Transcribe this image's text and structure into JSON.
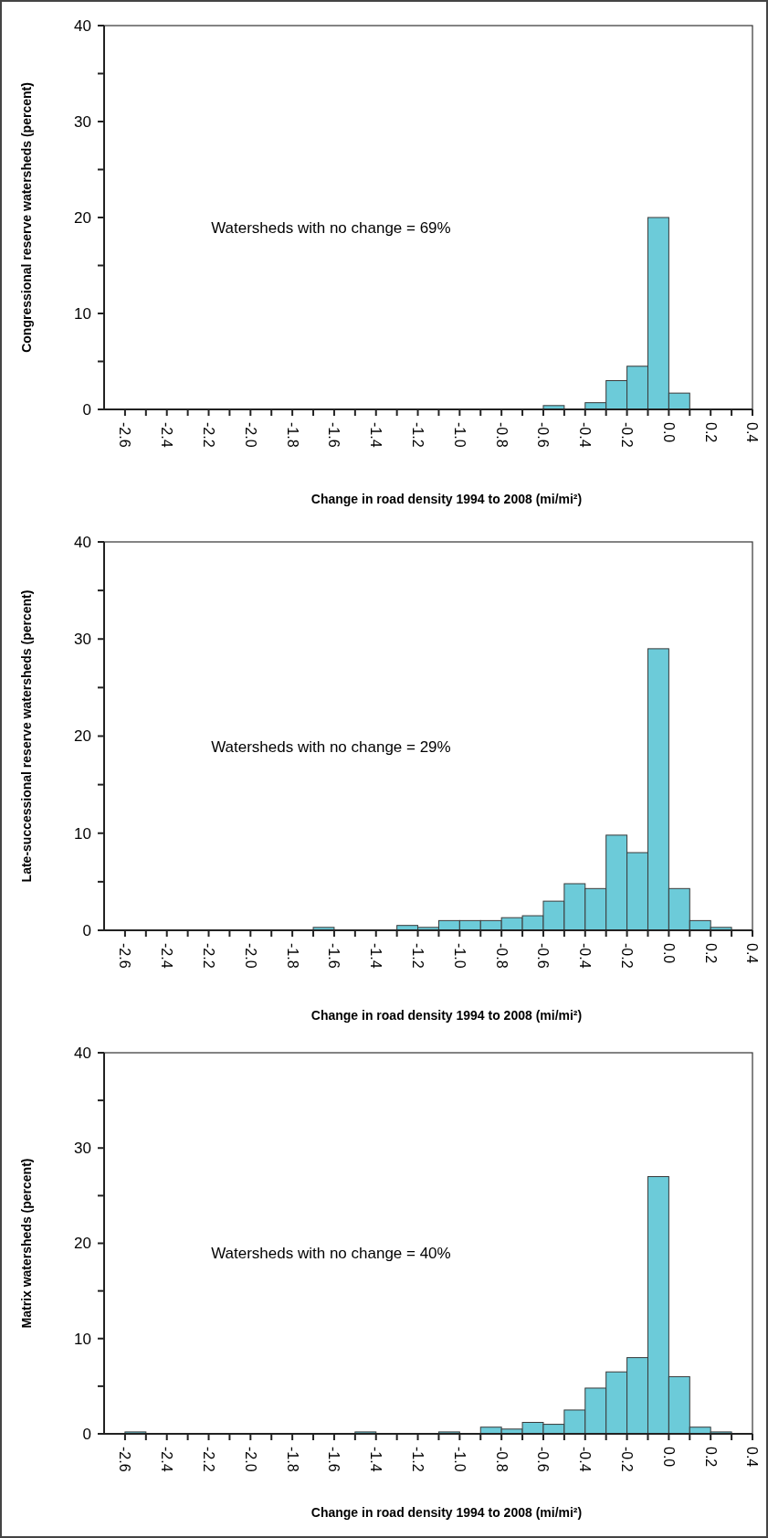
{
  "chart_data": [
    {
      "type": "histogram",
      "ylabel": "Congressional reserve watersheds (percent)",
      "xlabel": "Change in road density 1994 to 2008 (mi/mi²)",
      "annotations": [
        "Watersheds with no change = 69%"
      ],
      "color": "#6ccbd9",
      "bins": [
        -2.6,
        -2.5,
        -2.4,
        -2.3,
        -2.2,
        -2.1,
        -2.0,
        -1.9,
        -1.8,
        -1.7,
        -1.6,
        -1.5,
        -1.4,
        -1.3,
        -1.2,
        -1.1,
        -1.0,
        -0.9,
        -0.8,
        -0.7,
        -0.6,
        -0.5,
        -0.4,
        -0.3,
        -0.2,
        -0.1,
        0.0,
        0.1,
        0.2,
        0.3,
        0.4
      ],
      "values": [
        0,
        0,
        0,
        0,
        0,
        0,
        0,
        0,
        0,
        0,
        0,
        0,
        0,
        0,
        0,
        0,
        0,
        0,
        0,
        0,
        0.4,
        0,
        0.7,
        3.0,
        4.5,
        20.0,
        1.7,
        0,
        0,
        0
      ],
      "xlim": [
        -2.7,
        0.4
      ],
      "ylim": [
        0,
        40
      ],
      "xticks": [
        -2.6,
        {
          "value": -2.5,
          "label": null
        },
        -2.4,
        {
          "value": -2.3,
          "label": null
        },
        -2.2,
        {
          "value": -2.1,
          "label": null
        },
        {
          "value": -2.0,
          "label": "-2.0"
        },
        {
          "value": -1.9,
          "label": null
        },
        -1.8,
        {
          "value": -1.7,
          "label": null
        },
        -1.6,
        {
          "value": -1.5,
          "label": null
        },
        -1.4,
        {
          "value": -1.3,
          "label": null
        },
        -1.2,
        {
          "value": -1.1,
          "label": null
        },
        {
          "value": -1.0,
          "label": "-1.0"
        },
        {
          "value": -0.9,
          "label": null
        },
        -0.8,
        {
          "value": -0.7,
          "label": null
        },
        -0.6,
        {
          "value": -0.5,
          "label": null
        },
        -0.4,
        {
          "value": -0.3,
          "label": null
        },
        -0.2,
        {
          "value": -0.1,
          "label": null
        },
        {
          "value": 0,
          "label": "0.0"
        },
        {
          "value": 0.1,
          "label": null
        },
        0.2,
        {
          "value": 0.3,
          "label": null
        },
        0.4
      ],
      "yticks": [
        0,
        {
          "value": 5,
          "label": null
        },
        10,
        {
          "value": 15,
          "label": null
        },
        20,
        {
          "value": 25,
          "label": null
        },
        30,
        {
          "value": 35,
          "label": null
        },
        40
      ]
    },
    {
      "type": "histogram",
      "ylabel": "Late-successional reserve watersheds (percent)",
      "xlabel": "Change in road density 1994 to 2008 (mi/mi²)",
      "annotations": [
        "Watersheds with no change = 29%"
      ],
      "color": "#6ccbd9",
      "bins": [
        -2.6,
        -2.5,
        -2.4,
        -2.3,
        -2.2,
        -2.1,
        -2.0,
        -1.9,
        -1.8,
        -1.7,
        -1.6,
        -1.5,
        -1.4,
        -1.3,
        -1.2,
        -1.1,
        -1.0,
        -0.9,
        -0.8,
        -0.7,
        -0.6,
        -0.5,
        -0.4,
        -0.3,
        -0.2,
        -0.1,
        0.0,
        0.1,
        0.2,
        0.3,
        0.4
      ],
      "values": [
        0,
        0,
        0,
        0,
        0,
        0,
        0,
        0,
        0,
        0.3,
        0,
        0,
        0,
        0.5,
        0.3,
        1.0,
        1.0,
        1.0,
        1.3,
        1.5,
        3.0,
        4.8,
        4.3,
        9.8,
        8.0,
        29.0,
        4.3,
        1.0,
        0.3,
        0
      ],
      "xlim": [
        -2.7,
        0.4
      ],
      "ylim": [
        0,
        40
      ],
      "xticks": [
        -2.6,
        {
          "value": -2.5,
          "label": null
        },
        -2.4,
        {
          "value": -2.3,
          "label": null
        },
        -2.2,
        {
          "value": -2.1,
          "label": null
        },
        {
          "value": -2.0,
          "label": "-2.0"
        },
        {
          "value": -1.9,
          "label": null
        },
        -1.8,
        {
          "value": -1.7,
          "label": null
        },
        -1.6,
        {
          "value": -1.5,
          "label": null
        },
        -1.4,
        {
          "value": -1.3,
          "label": null
        },
        -1.2,
        {
          "value": -1.1,
          "label": null
        },
        {
          "value": -1.0,
          "label": "-1.0"
        },
        {
          "value": -0.9,
          "label": null
        },
        -0.8,
        {
          "value": -0.7,
          "label": null
        },
        -0.6,
        {
          "value": -0.5,
          "label": null
        },
        -0.4,
        {
          "value": -0.3,
          "label": null
        },
        -0.2,
        {
          "value": -0.1,
          "label": null
        },
        {
          "value": 0,
          "label": "0.0"
        },
        {
          "value": 0.1,
          "label": null
        },
        0.2,
        {
          "value": 0.3,
          "label": null
        },
        0.4
      ],
      "yticks": [
        0,
        {
          "value": 5,
          "label": null
        },
        10,
        {
          "value": 15,
          "label": null
        },
        20,
        {
          "value": 25,
          "label": null
        },
        30,
        {
          "value": 35,
          "label": null
        },
        40
      ]
    },
    {
      "type": "histogram",
      "ylabel": "Matrix watersheds (percent)",
      "xlabel": "Change in road density 1994 to 2008 (mi/mi²)",
      "annotations": [
        "Watersheds with no change = 40%"
      ],
      "color": "#6ccbd9",
      "bins": [
        -2.6,
        -2.5,
        -2.4,
        -2.3,
        -2.2,
        -2.1,
        -2.0,
        -1.9,
        -1.8,
        -1.7,
        -1.6,
        -1.5,
        -1.4,
        -1.3,
        -1.2,
        -1.1,
        -1.0,
        -0.9,
        -0.8,
        -0.7,
        -0.6,
        -0.5,
        -0.4,
        -0.3,
        -0.2,
        -0.1,
        0.0,
        0.1,
        0.2,
        0.3,
        0.4
      ],
      "values": [
        0.2,
        0,
        0,
        0,
        0,
        0,
        0,
        0,
        0,
        0,
        0,
        0.2,
        0,
        0,
        0,
        0.2,
        0,
        0.7,
        0.5,
        1.2,
        1.0,
        2.5,
        4.8,
        6.5,
        8.0,
        27.0,
        6.0,
        0.7,
        0.2,
        0
      ],
      "xlim": [
        -2.7,
        0.4
      ],
      "ylim": [
        0,
        40
      ],
      "xticks": [
        -2.6,
        {
          "value": -2.5,
          "label": null
        },
        -2.4,
        {
          "value": -2.3,
          "label": null
        },
        -2.2,
        {
          "value": -2.1,
          "label": null
        },
        {
          "value": -2.0,
          "label": "-2.0"
        },
        {
          "value": -1.9,
          "label": null
        },
        -1.8,
        {
          "value": -1.7,
          "label": null
        },
        -1.6,
        {
          "value": -1.5,
          "label": null
        },
        -1.4,
        {
          "value": -1.3,
          "label": null
        },
        -1.2,
        {
          "value": -1.1,
          "label": null
        },
        {
          "value": -1.0,
          "label": "-1.0"
        },
        {
          "value": -0.9,
          "label": null
        },
        -0.8,
        {
          "value": -0.7,
          "label": null
        },
        -0.6,
        {
          "value": -0.5,
          "label": null
        },
        -0.4,
        {
          "value": -0.3,
          "label": null
        },
        -0.2,
        {
          "value": -0.1,
          "label": null
        },
        {
          "value": 0,
          "label": "0.0"
        },
        {
          "value": 0.1,
          "label": null
        },
        0.2,
        {
          "value": 0.3,
          "label": null
        },
        0.4
      ],
      "yticks": [
        0,
        {
          "value": 5,
          "label": null
        },
        10,
        {
          "value": 15,
          "label": null
        },
        20,
        {
          "value": 25,
          "label": null
        },
        30,
        {
          "value": 35,
          "label": null
        },
        40
      ]
    }
  ]
}
